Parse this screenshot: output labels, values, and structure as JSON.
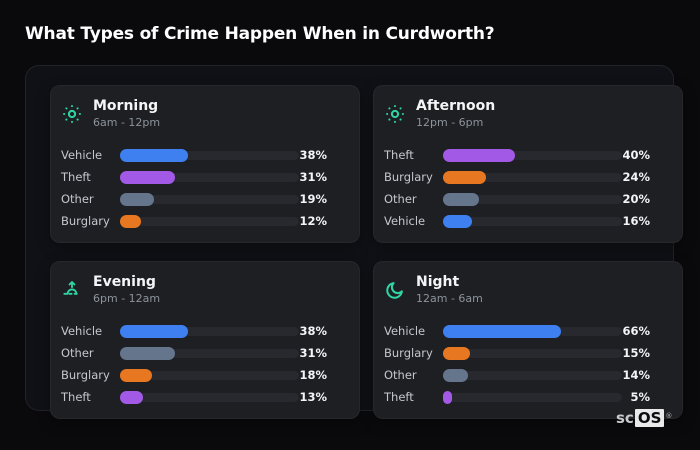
{
  "page": {
    "title": "What Types of Crime Happen When in Curdworth?"
  },
  "brand": {
    "prefix": "sc",
    "suffix": "OS",
    "registered": "®"
  },
  "colors": {
    "accent_teal": "#2fd6a4",
    "category_colors": {
      "Vehicle": "#3f80f1",
      "Theft": "#a259e6",
      "Other": "#65758c",
      "Burglary": "#e87722"
    },
    "track": "#27292e",
    "card_bg": "#1d1f23",
    "page_bg": "#0a0a0d"
  },
  "chart_data": [
    {
      "type": "bar",
      "orientation": "horizontal",
      "title": "Morning",
      "subtitle": "6am - 12pm",
      "icon": "sun-icon",
      "unit": "%",
      "xlim": [
        0,
        100
      ],
      "grid": false,
      "categories": [
        "Vehicle",
        "Theft",
        "Other",
        "Burglary"
      ],
      "values": [
        38,
        31,
        19,
        12
      ]
    },
    {
      "type": "bar",
      "orientation": "horizontal",
      "title": "Afternoon",
      "subtitle": "12pm - 6pm",
      "icon": "sun-icon",
      "unit": "%",
      "xlim": [
        0,
        100
      ],
      "grid": false,
      "categories": [
        "Theft",
        "Burglary",
        "Other",
        "Vehicle"
      ],
      "values": [
        40,
        24,
        20,
        16
      ]
    },
    {
      "type": "bar",
      "orientation": "horizontal",
      "title": "Evening",
      "subtitle": "6pm - 12am",
      "icon": "sunrise-icon",
      "unit": "%",
      "xlim": [
        0,
        100
      ],
      "grid": false,
      "categories": [
        "Vehicle",
        "Other",
        "Burglary",
        "Theft"
      ],
      "values": [
        38,
        31,
        18,
        13
      ]
    },
    {
      "type": "bar",
      "orientation": "horizontal",
      "title": "Night",
      "subtitle": "12am - 6am",
      "icon": "moon-icon",
      "unit": "%",
      "xlim": [
        0,
        100
      ],
      "grid": false,
      "categories": [
        "Vehicle",
        "Burglary",
        "Other",
        "Theft"
      ],
      "values": [
        66,
        15,
        14,
        5
      ]
    }
  ]
}
